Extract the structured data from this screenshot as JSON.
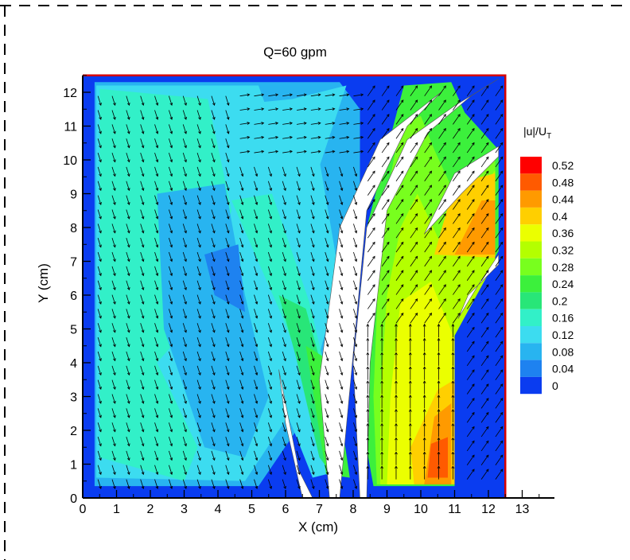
{
  "chart_data": {
    "type": "heatmap",
    "title": "Q=60 gpm",
    "xlabel": "X (cm)",
    "ylabel": "Y (cm)",
    "xlim": [
      0,
      13.9
    ],
    "ylim": [
      0,
      12.5
    ],
    "x_ticks": [
      "0",
      "1",
      "2",
      "3",
      "4",
      "5",
      "6",
      "7",
      "8",
      "9",
      "10",
      "11",
      "12",
      "13"
    ],
    "y_ticks": [
      "0",
      "1",
      "2",
      "3",
      "4",
      "5",
      "6",
      "7",
      "8",
      "9",
      "10",
      "11",
      "12"
    ],
    "colorbar_title_main": "|u|/U",
    "colorbar_title_sub": "T",
    "colorbar_levels": [
      "0.52",
      "0.48",
      "0.44",
      "0.4",
      "0.36",
      "0.32",
      "0.28",
      "0.24",
      "0.2",
      "0.16",
      "0.12",
      "0.08",
      "0.04",
      "0"
    ],
    "colorbar_colors": [
      "#ff0000",
      "#ff5a00",
      "#ff9a00",
      "#ffcf00",
      "#ebff00",
      "#b4ff00",
      "#78ff1e",
      "#3cf03c",
      "#28e678",
      "#32f0c8",
      "#3cdcf0",
      "#28b4f0",
      "#1e82f0",
      "#0a3cf0"
    ],
    "arrow_color": "#000000",
    "blade_color": "#ffffff",
    "frame_color": "#d40000"
  }
}
